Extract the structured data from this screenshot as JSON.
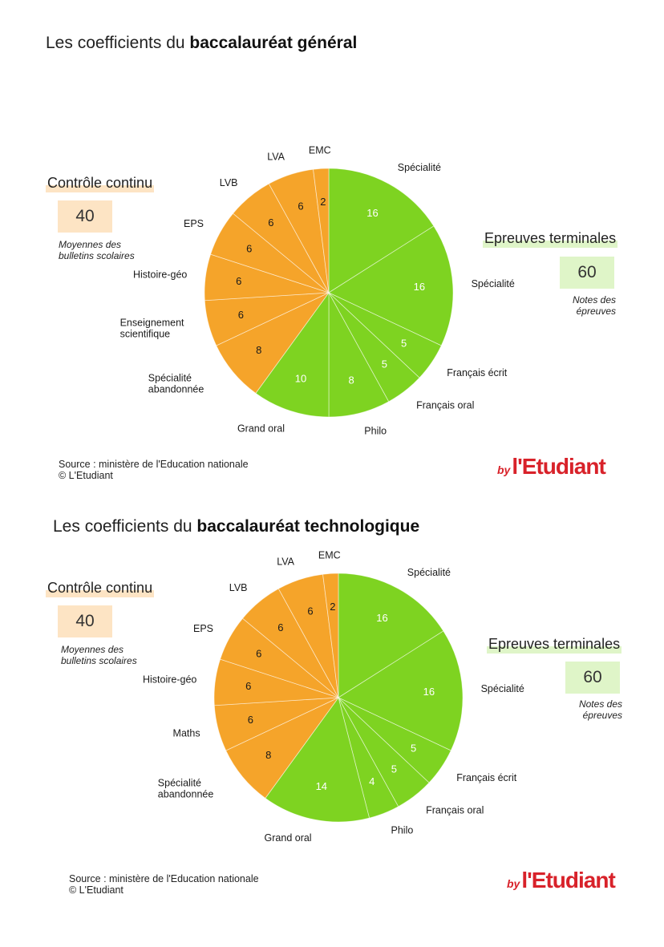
{
  "colors": {
    "orange": "#f5a42a",
    "green": "#7ed321",
    "orange_hl": "#fde4c4",
    "green_hl": "#dff5c8",
    "logo_red": "#d8222a"
  },
  "chart_data": [
    {
      "type": "pie",
      "title_prefix": "Les coefficients du ",
      "title_bold": "baccalauréat général",
      "slices": [
        {
          "label": "Spécialité",
          "value": 16,
          "group": "epreuves"
        },
        {
          "label": "Spécialité",
          "value": 16,
          "group": "epreuves"
        },
        {
          "label": "Français écrit",
          "value": 5,
          "group": "epreuves"
        },
        {
          "label": "Français oral",
          "value": 5,
          "group": "epreuves"
        },
        {
          "label": "Philo",
          "value": 8,
          "group": "epreuves"
        },
        {
          "label": "Grand oral",
          "value": 10,
          "group": "epreuves"
        },
        {
          "label": "Spécialité abandonnée",
          "value": 8,
          "group": "controle"
        },
        {
          "label": "Enseignement scientifique",
          "value": 6,
          "group": "controle"
        },
        {
          "label": "Histoire-géo",
          "value": 6,
          "group": "controle"
        },
        {
          "label": "EPS",
          "value": 6,
          "group": "controle"
        },
        {
          "label": "LVB",
          "value": 6,
          "group": "controle"
        },
        {
          "label": "LVA",
          "value": 6,
          "group": "controle"
        },
        {
          "label": "EMC",
          "value": 2,
          "group": "controle"
        }
      ],
      "controle": {
        "title": "Contrôle continu",
        "total": "40",
        "note": [
          "Moyennes des",
          "bulletins scolaires"
        ]
      },
      "epreuves": {
        "title": "Epreuves terminales",
        "total": "60",
        "note": [
          "Notes des",
          "épreuves"
        ]
      },
      "source": [
        "Source : ministère de l'Education nationale",
        "© L'Etudiant"
      ],
      "logo": {
        "by": "by",
        "brand": "l'Etudiant"
      }
    },
    {
      "type": "pie",
      "title_prefix": "Les coefficients du ",
      "title_bold": "baccalauréat technologique",
      "slices": [
        {
          "label": "Spécialité",
          "value": 16,
          "group": "epreuves"
        },
        {
          "label": "Spécialité",
          "value": 16,
          "group": "epreuves"
        },
        {
          "label": "Français écrit",
          "value": 5,
          "group": "epreuves"
        },
        {
          "label": "Français oral",
          "value": 5,
          "group": "epreuves"
        },
        {
          "label": "Philo",
          "value": 4,
          "group": "epreuves"
        },
        {
          "label": "Grand oral",
          "value": 14,
          "group": "epreuves"
        },
        {
          "label": "Spécialité abandonnée",
          "value": 8,
          "group": "controle"
        },
        {
          "label": "Maths",
          "value": 6,
          "group": "controle"
        },
        {
          "label": "Histoire-géo",
          "value": 6,
          "group": "controle"
        },
        {
          "label": "EPS",
          "value": 6,
          "group": "controle"
        },
        {
          "label": "LVB",
          "value": 6,
          "group": "controle"
        },
        {
          "label": "LVA",
          "value": 6,
          "group": "controle"
        },
        {
          "label": "EMC",
          "value": 2,
          "group": "controle"
        }
      ],
      "controle": {
        "title": "Contrôle continu",
        "total": "40",
        "note": [
          "Moyennes des",
          "bulletins scolaires"
        ]
      },
      "epreuves": {
        "title": "Epreuves terminales",
        "total": "60",
        "note": [
          "Notes des",
          "épreuves"
        ]
      },
      "source": [
        "Source : ministère de l'Education nationale",
        "© L'Etudiant"
      ],
      "logo": {
        "by": "by",
        "brand": "l'Etudiant"
      }
    }
  ]
}
